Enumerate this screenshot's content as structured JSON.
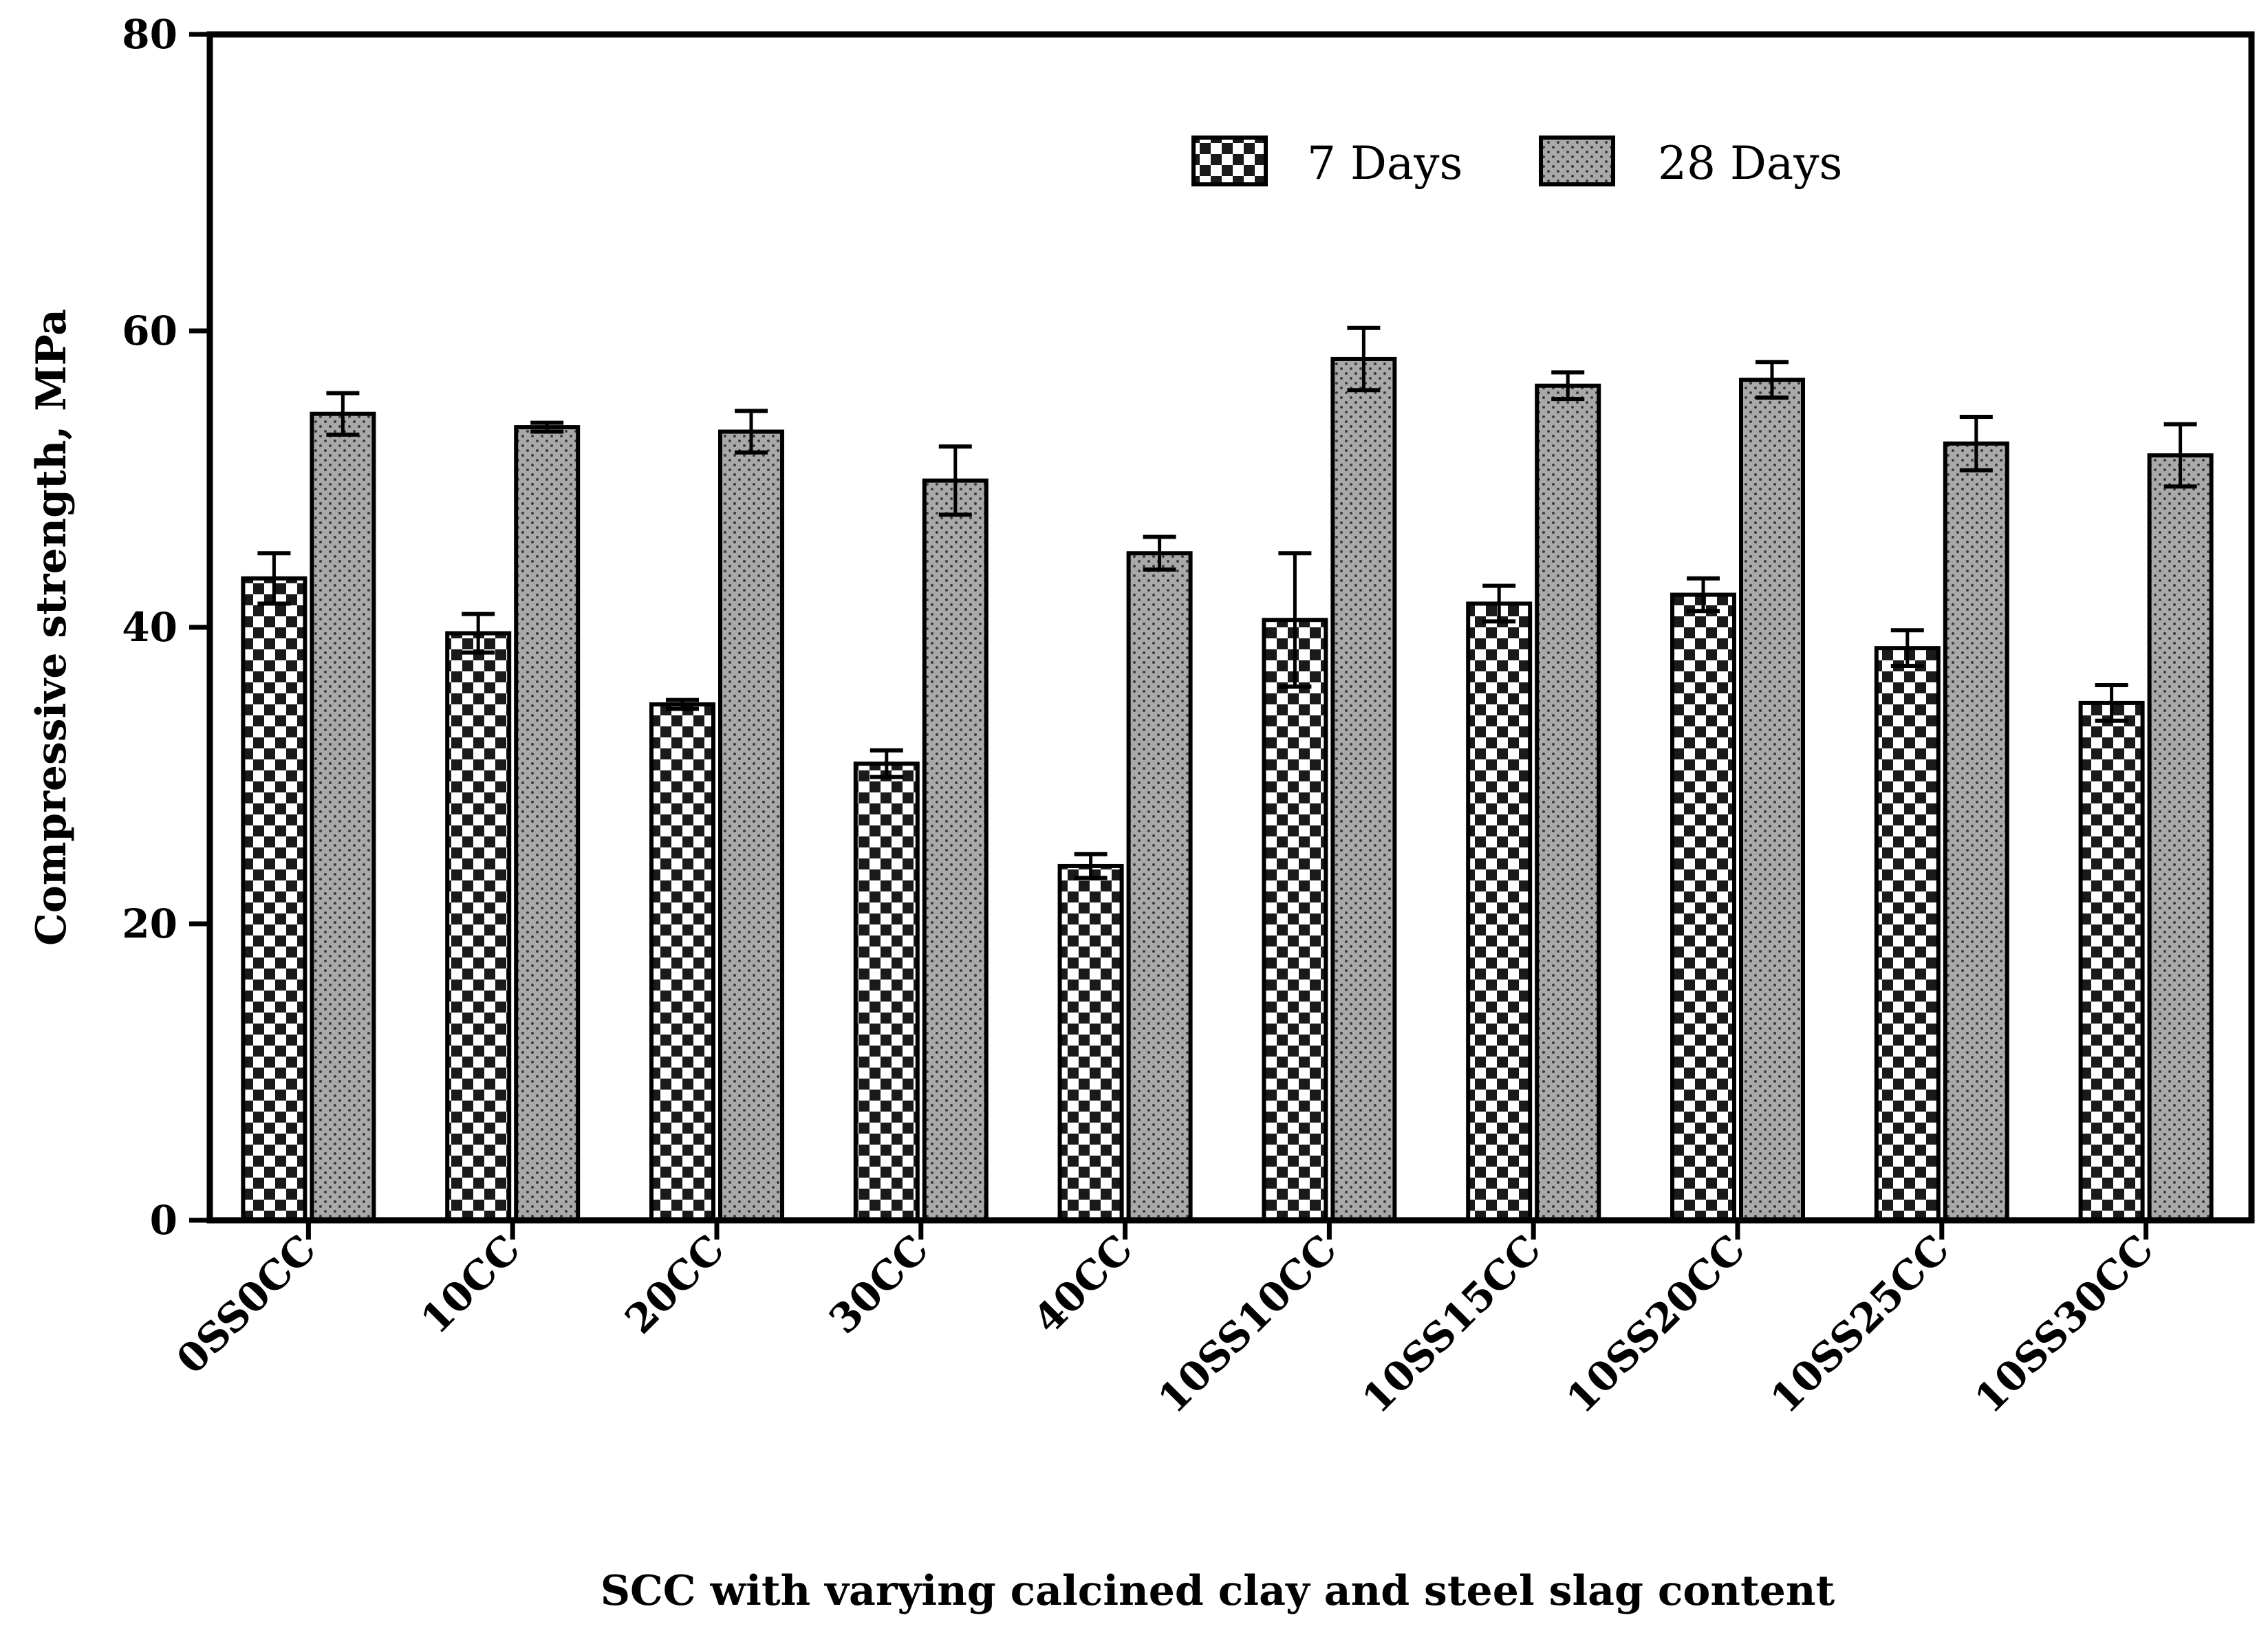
{
  "chart_data": {
    "type": "bar",
    "title": "",
    "xlabel": "SCC with varying calcined clay and steel slag content",
    "ylabel": "Compressive strength, MPa",
    "ylim": [
      0,
      80
    ],
    "yticks": [
      0,
      20,
      40,
      60,
      80
    ],
    "grid": false,
    "legend_position": "top-right",
    "categories": [
      "0SS0CC",
      "10CC",
      "20CC",
      "30CC",
      "40CC",
      "10SS10CC",
      "10SS15CC",
      "10SS20CC",
      "10SS25CC",
      "10SS30CC"
    ],
    "series": [
      {
        "name": "7 Days",
        "pattern": "checkerboard",
        "values": [
          43.3,
          39.6,
          34.8,
          30.8,
          23.9,
          40.5,
          41.6,
          42.2,
          38.6,
          34.9
        ],
        "errors": [
          1.7,
          1.3,
          0.3,
          0.9,
          0.8,
          4.5,
          1.2,
          1.1,
          1.2,
          1.2
        ]
      },
      {
        "name": "28 Days",
        "pattern": "dotted-gray",
        "values": [
          54.4,
          53.5,
          53.2,
          49.9,
          45.0,
          58.1,
          56.3,
          56.7,
          52.4,
          51.6
        ],
        "errors": [
          1.4,
          0.3,
          1.4,
          2.3,
          1.1,
          2.1,
          0.9,
          1.2,
          1.8,
          2.1
        ]
      }
    ]
  }
}
